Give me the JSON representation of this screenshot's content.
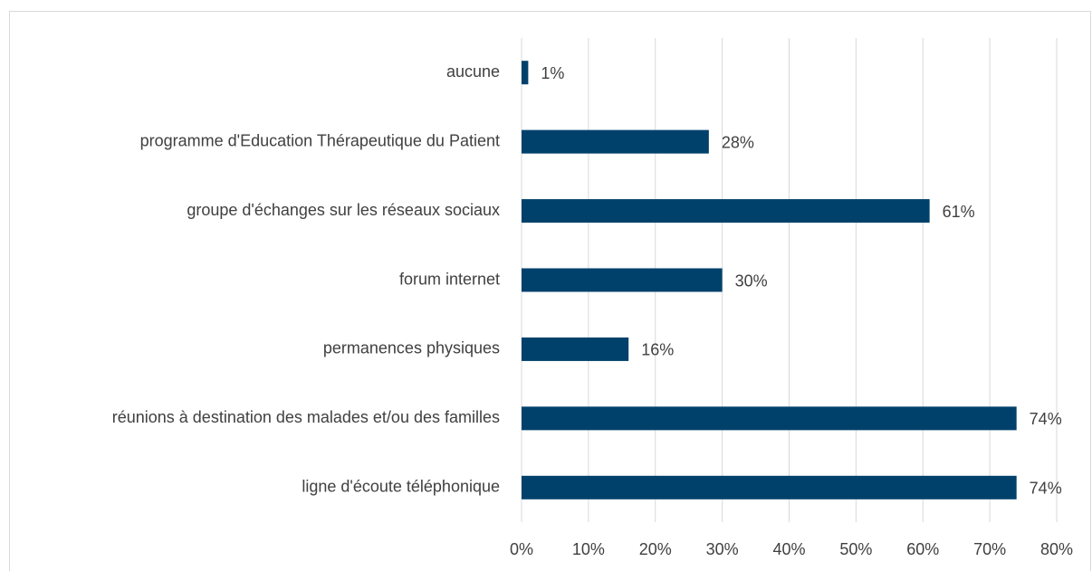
{
  "chart_data": {
    "type": "bar",
    "orientation": "horizontal",
    "categories": [
      "aucune",
      "programme d'Education Thérapeutique du Patient",
      "groupe d'échanges sur les réseaux sociaux",
      "forum internet",
      "permanences physiques",
      "réunions à destination des malades et/ou des familles",
      "ligne d'écoute téléphonique"
    ],
    "values": [
      1,
      28,
      61,
      30,
      16,
      74,
      74
    ],
    "value_labels": [
      "1%",
      "28%",
      "61%",
      "30%",
      "16%",
      "74%",
      "74%"
    ],
    "color": "#00416b",
    "xlim": [
      0,
      80
    ],
    "xticks": [
      {
        "value": 0,
        "label": "0%"
      },
      {
        "value": 10,
        "label": "10%"
      },
      {
        "value": 20,
        "label": "20%"
      },
      {
        "value": 30,
        "label": "30%"
      },
      {
        "value": 40,
        "label": "40%"
      },
      {
        "value": 50,
        "label": "50%"
      },
      {
        "value": 60,
        "label": "60%"
      },
      {
        "value": 70,
        "label": "70%"
      },
      {
        "value": 80,
        "label": "80%"
      }
    ],
    "grid": true
  }
}
